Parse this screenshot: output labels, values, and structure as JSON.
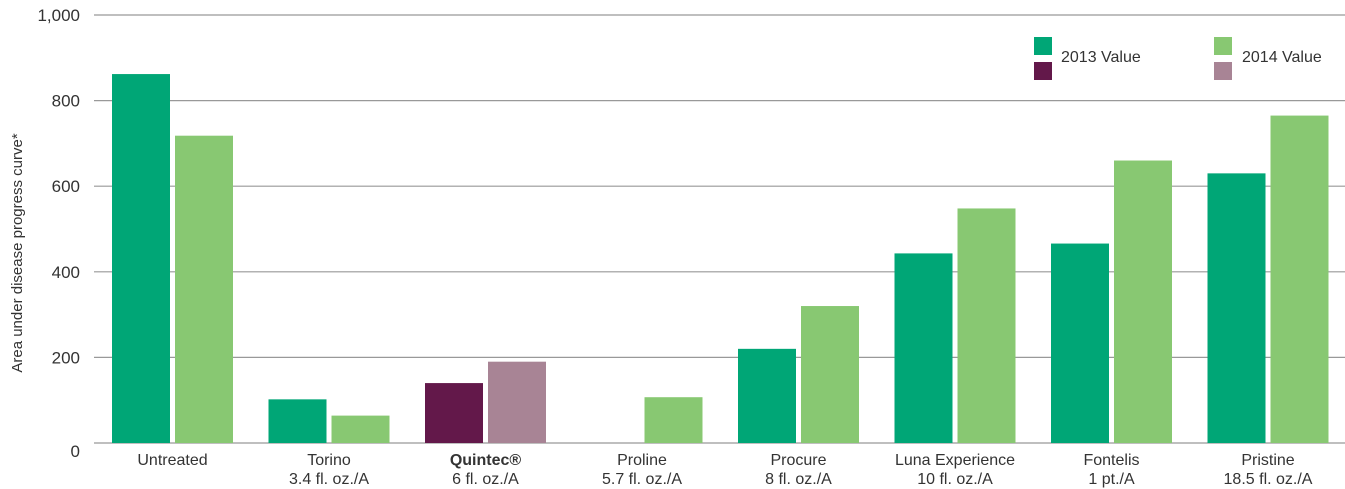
{
  "chart_data": {
    "type": "bar",
    "ylabel": "Area under disease progress curve*",
    "ylim": [
      0,
      1000
    ],
    "yticks": [
      "0",
      "200",
      "400",
      "600",
      "800",
      "1,000"
    ],
    "grid": true,
    "legend_position": "top-right",
    "categories": [
      {
        "line1": "Untreated",
        "line2": "",
        "bold": false
      },
      {
        "line1": "Torino",
        "line2": "3.4 fl. oz./A",
        "bold": false
      },
      {
        "line1": "Quintec®",
        "line2": "6 fl. oz./A",
        "bold": true
      },
      {
        "line1": "Proline",
        "line2": "5.7 fl. oz./A",
        "bold": false
      },
      {
        "line1": "Procure",
        "line2": "8 fl. oz./A",
        "bold": false
      },
      {
        "line1": "Luna Experience",
        "line2": "10 fl. oz./A",
        "bold": false
      },
      {
        "line1": "Fontelis",
        "line2": "1 pt./A",
        "bold": false
      },
      {
        "line1": "Pristine",
        "line2": "18.5 fl. oz./A",
        "bold": false
      }
    ],
    "series": [
      {
        "name": "2013 Value",
        "values": [
          862,
          102,
          140,
          0,
          220,
          443,
          466,
          630
        ]
      },
      {
        "name": "2014 Value",
        "values": [
          718,
          64,
          190,
          107,
          320,
          548,
          660,
          765
        ]
      }
    ],
    "colors": {
      "2013": "#00a676",
      "2014": "#88c872",
      "highlight_2013": "#63184a",
      "highlight_2014": "#a88495",
      "grid": "#999999",
      "text": "#333333"
    },
    "highlight_category_index": 2
  }
}
